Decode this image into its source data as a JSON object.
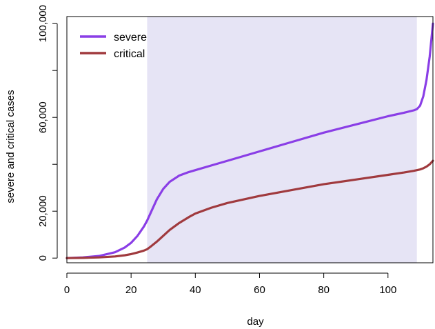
{
  "chart_data": {
    "type": "line",
    "title": "",
    "xlabel": "day",
    "ylabel": "severe and critical cases",
    "xlim": [
      0,
      114
    ],
    "ylim": [
      -2000,
      103000
    ],
    "xticks": [
      0,
      20,
      40,
      60,
      80,
      100
    ],
    "xtick_labels": [
      "0",
      "20",
      "40",
      "60",
      "80",
      "100"
    ],
    "yticks": [
      0,
      20000,
      40000,
      60000,
      80000,
      100000
    ],
    "ytick_labels": [
      "0",
      "20,000",
      "",
      "60,000",
      "",
      "100,000"
    ],
    "grid": false,
    "legend_position": "top-left",
    "shaded_region": {
      "x_start": 25,
      "x_end": 109,
      "color": "#e6e4f5"
    },
    "x": [
      0,
      5,
      10,
      15,
      18,
      20,
      22,
      24,
      25,
      26,
      28,
      30,
      32,
      35,
      38,
      40,
      45,
      50,
      60,
      70,
      80,
      90,
      100,
      105,
      108,
      109,
      110,
      111,
      112,
      113,
      114
    ],
    "series": [
      {
        "name": "severe",
        "color": "#8a3ee6",
        "values": [
          0,
          300,
          900,
          2500,
          4500,
          6500,
          9500,
          13500,
          16000,
          19000,
          25000,
          29500,
          32500,
          35200,
          36700,
          37500,
          39500,
          41500,
          45500,
          49500,
          53500,
          57000,
          60500,
          62000,
          63000,
          63500,
          65000,
          69000,
          76000,
          86000,
          100000
        ]
      },
      {
        "name": "critical",
        "color": "#a03a3e",
        "values": [
          0,
          100,
          300,
          700,
          1200,
          1700,
          2400,
          3200,
          3800,
          4800,
          7000,
          9500,
          12000,
          15000,
          17500,
          19000,
          21500,
          23500,
          26500,
          29000,
          31500,
          33500,
          35500,
          36500,
          37200,
          37500,
          37800,
          38300,
          39000,
          40000,
          41500
        ]
      }
    ]
  }
}
